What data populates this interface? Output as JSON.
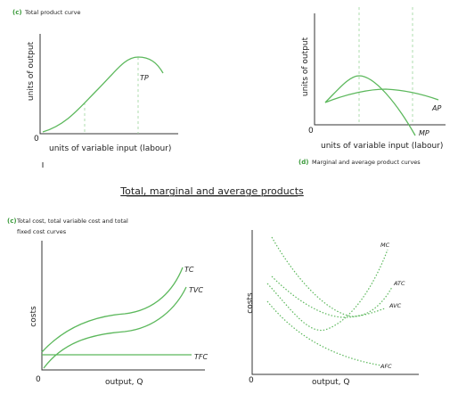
{
  "title": "Total, marginal and average products",
  "panels": [
    {
      "label": "(c)",
      "caption": "Total product curve",
      "y_axis": "units of output",
      "x_axis": "units of variable input (labour)",
      "origin": "0",
      "curves": [
        "TP"
      ]
    },
    {
      "label": "(d)",
      "caption": "Marginal and average product curves",
      "y_axis": "units of output",
      "x_axis": "units of variable input (labour)",
      "origin": "0",
      "curves": [
        "AP",
        "MP"
      ]
    },
    {
      "label": "(c)",
      "caption": [
        "Total cost, total variable cost and total",
        "fixed cost curves"
      ],
      "y_axis": "costs",
      "x_axis": "output, Q",
      "origin": "0",
      "curves": [
        "TC",
        "TVC",
        "TFC"
      ]
    },
    {
      "y_axis": "costs",
      "x_axis": "output, Q",
      "origin": "0",
      "curves": [
        "MC",
        "ATC",
        "AVC",
        "AFC"
      ]
    }
  ]
}
